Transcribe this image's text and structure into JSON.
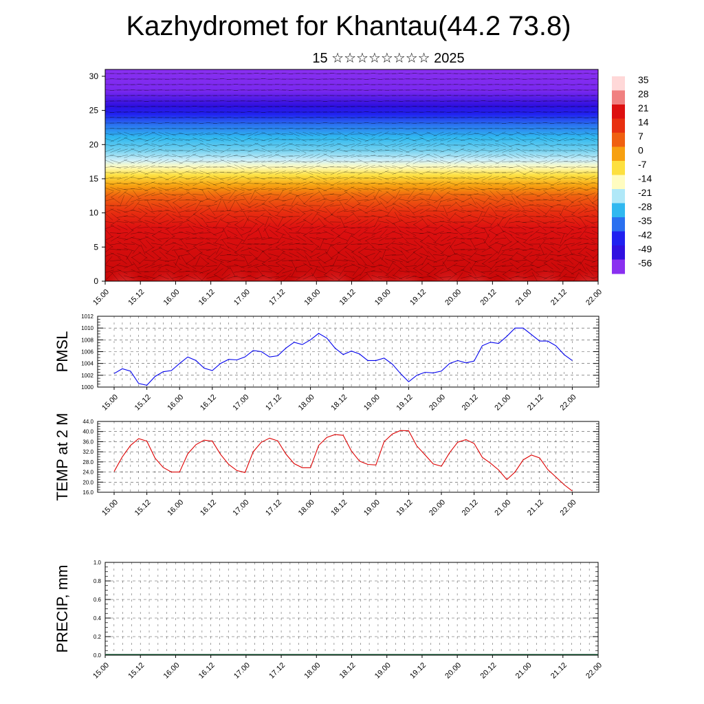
{
  "header": {
    "title": "Kazhydromet for Khantau(44.2 73.8)",
    "subtitle": "15 ☆☆☆☆☆☆☆☆ 2025"
  },
  "time_ticks": [
    "15.00",
    "15.12",
    "16.00",
    "16.12",
    "17.00",
    "17.12",
    "18.00",
    "18.12",
    "19.00",
    "19.12",
    "20.00",
    "20.12",
    "21.00",
    "21.12",
    "22.00"
  ],
  "chart_data": [
    {
      "type": "heatmap",
      "name": "cross-section",
      "y_ticks": [
        "0",
        "5",
        "10",
        "15",
        "20",
        "25",
        "30"
      ],
      "ylim": [
        0,
        31
      ],
      "colorbar_labels": [
        "35",
        "28",
        "21",
        "14",
        "7",
        "0",
        "-7",
        "-14",
        "-21",
        "-28",
        "-35",
        "-42",
        "-49",
        "-56"
      ],
      "colorbar_colors": [
        "#ffd8d8",
        "#f08080",
        "#dd1010",
        "#e83010",
        "#f06010",
        "#f7a010",
        "#fde040",
        "#fffcc0",
        "#b0e8f8",
        "#30b8f0",
        "#2a70f0",
        "#2020f0",
        "#3010e0",
        "#8a30f0"
      ]
    },
    {
      "type": "line",
      "name": "pmsl",
      "ylabel": "PMSL",
      "ylim": [
        1000,
        1012
      ],
      "y_ticks": [
        "1000",
        "1002",
        "1004",
        "1006",
        "1008",
        "1010",
        "1012"
      ],
      "color": "#0000ee",
      "values": [
        1002.3,
        1003.1,
        1002.7,
        1000.6,
        1000.3,
        1001.8,
        1002.6,
        1002.8,
        1004.0,
        1005.1,
        1004.5,
        1003.2,
        1002.8,
        1004.0,
        1004.7,
        1004.6,
        1005.1,
        1006.2,
        1006.0,
        1005.1,
        1005.3,
        1006.6,
        1007.6,
        1007.2,
        1008.0,
        1009.1,
        1008.3,
        1006.6,
        1005.5,
        1006.1,
        1005.6,
        1004.5,
        1004.5,
        1004.9,
        1003.9,
        1002.3,
        1000.9,
        1002.0,
        1002.5,
        1002.4,
        1002.7,
        1004.0,
        1004.5,
        1004.1,
        1004.4,
        1007.0,
        1007.6,
        1007.4,
        1008.6,
        1010.0,
        1010.0,
        1008.9,
        1007.8,
        1007.8,
        1007.0,
        1005.5,
        1004.5
      ]
    },
    {
      "type": "line",
      "name": "temp",
      "ylabel": "TEMP at 2 M",
      "ylim": [
        16,
        44
      ],
      "y_ticks": [
        "16.0",
        "20.0",
        "24.0",
        "28.0",
        "32.0",
        "36.0",
        "40.0",
        "44.0"
      ],
      "color": "#dd0000",
      "values": [
        24.2,
        30.0,
        34.5,
        37.2,
        36.2,
        29.5,
        25.8,
        24.0,
        24.0,
        31.2,
        34.8,
        36.6,
        36.2,
        31.0,
        27.0,
        24.6,
        23.8,
        32.0,
        35.8,
        37.4,
        36.3,
        31.1,
        27.3,
        25.7,
        25.7,
        34.5,
        37.7,
        38.8,
        38.5,
        32.3,
        28.3,
        27.0,
        26.8,
        36.0,
        39.0,
        40.4,
        40.3,
        34.3,
        30.8,
        27.2,
        26.3,
        31.6,
        35.8,
        36.8,
        35.3,
        29.8,
        27.5,
        24.8,
        21.0,
        24.0,
        28.8,
        30.7,
        29.6,
        25.0,
        22.0,
        19.0,
        16.5
      ]
    },
    {
      "type": "bar",
      "name": "precip",
      "ylabel": "PRECIP, mm",
      "ylim": [
        0,
        1
      ],
      "y_ticks": [
        "0.0",
        "0.2",
        "0.4",
        "0.6",
        "0.8",
        "1.0"
      ],
      "values": [
        0,
        0,
        0,
        0,
        0,
        0,
        0,
        0,
        0,
        0,
        0,
        0,
        0,
        0,
        0,
        0,
        0,
        0,
        0,
        0,
        0,
        0,
        0,
        0,
        0,
        0,
        0,
        0,
        0,
        0,
        0,
        0,
        0,
        0,
        0,
        0,
        0,
        0,
        0,
        0,
        0,
        0,
        0,
        0,
        0,
        0,
        0,
        0,
        0,
        0,
        0,
        0,
        0,
        0,
        0,
        0,
        0
      ]
    }
  ]
}
